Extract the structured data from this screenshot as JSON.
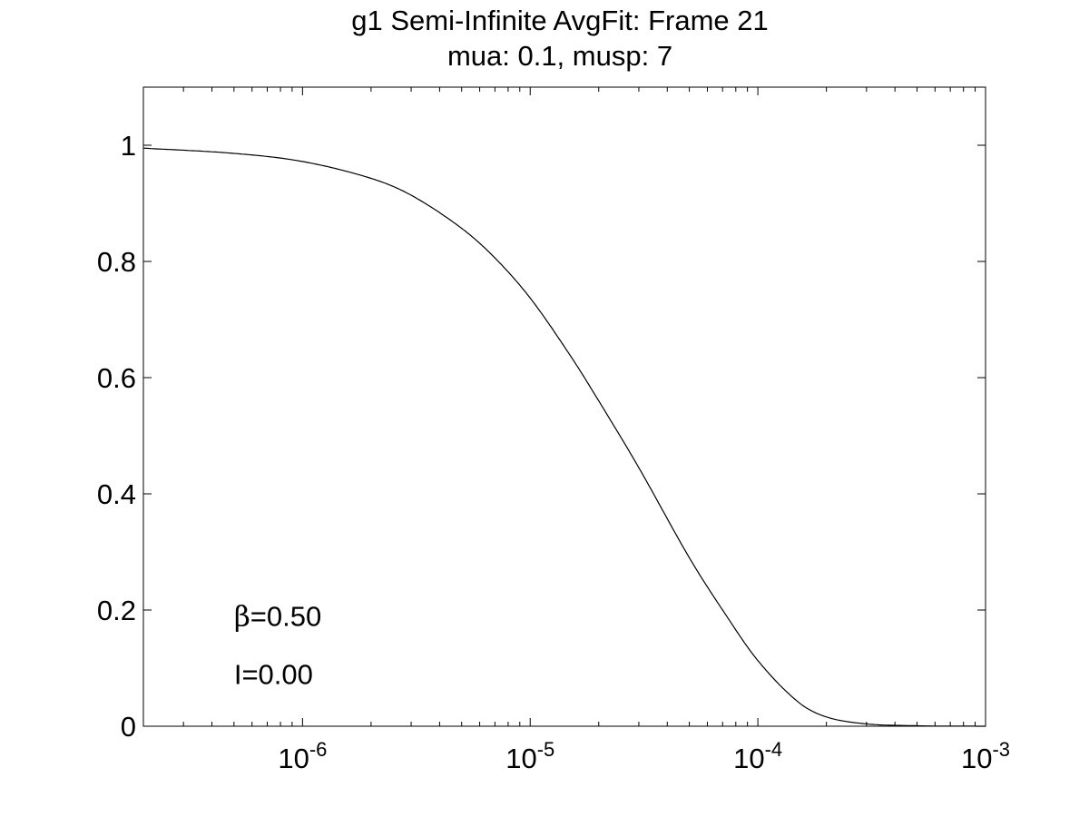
{
  "chart_data": {
    "type": "line",
    "title": "g1 Semi-Infinite AvgFit: Frame 21",
    "subtitle": "mua: 0.1, musp: 7",
    "xlabel": "",
    "ylabel": "",
    "xscale": "log",
    "xlim": [
      2e-07,
      0.001
    ],
    "ylim": [
      0,
      1.1
    ],
    "grid": false,
    "legend": "none",
    "x_ticks": [
      {
        "value": 1e-06,
        "base": "10",
        "exp": "-6"
      },
      {
        "value": 1e-05,
        "base": "10",
        "exp": "-5"
      },
      {
        "value": 0.0001,
        "base": "10",
        "exp": "-4"
      },
      {
        "value": 0.001,
        "base": "10",
        "exp": "-3"
      }
    ],
    "y_ticks": [
      {
        "value": 0,
        "label": "0"
      },
      {
        "value": 0.2,
        "label": "0.2"
      },
      {
        "value": 0.4,
        "label": "0.4"
      },
      {
        "value": 0.6,
        "label": "0.6"
      },
      {
        "value": 0.8,
        "label": "0.8"
      },
      {
        "value": 1,
        "label": "1"
      }
    ],
    "annotations": [
      {
        "symbol": "β",
        "text": "=0.50",
        "x": 5e-07,
        "y": 0.19
      },
      {
        "symbol": "",
        "text": "I=0.00",
        "x": 5e-07,
        "y": 0.09
      }
    ],
    "series": [
      {
        "color": "#000000",
        "x": [
          2e-07,
          5e-07,
          1e-06,
          2e-06,
          3e-06,
          5e-06,
          7e-06,
          1e-05,
          1.5e-05,
          2e-05,
          3e-05,
          5e-05,
          7e-05,
          0.0001,
          0.00015,
          0.0002,
          0.0003,
          0.0005,
          0.0007,
          0.001
        ],
        "y": [
          0.995,
          0.986,
          0.972,
          0.943,
          0.914,
          0.857,
          0.806,
          0.737,
          0.638,
          0.56,
          0.445,
          0.29,
          0.2,
          0.113,
          0.042,
          0.016,
          0.004,
          0.0008,
          0.0002,
          5e-05
        ]
      }
    ]
  }
}
